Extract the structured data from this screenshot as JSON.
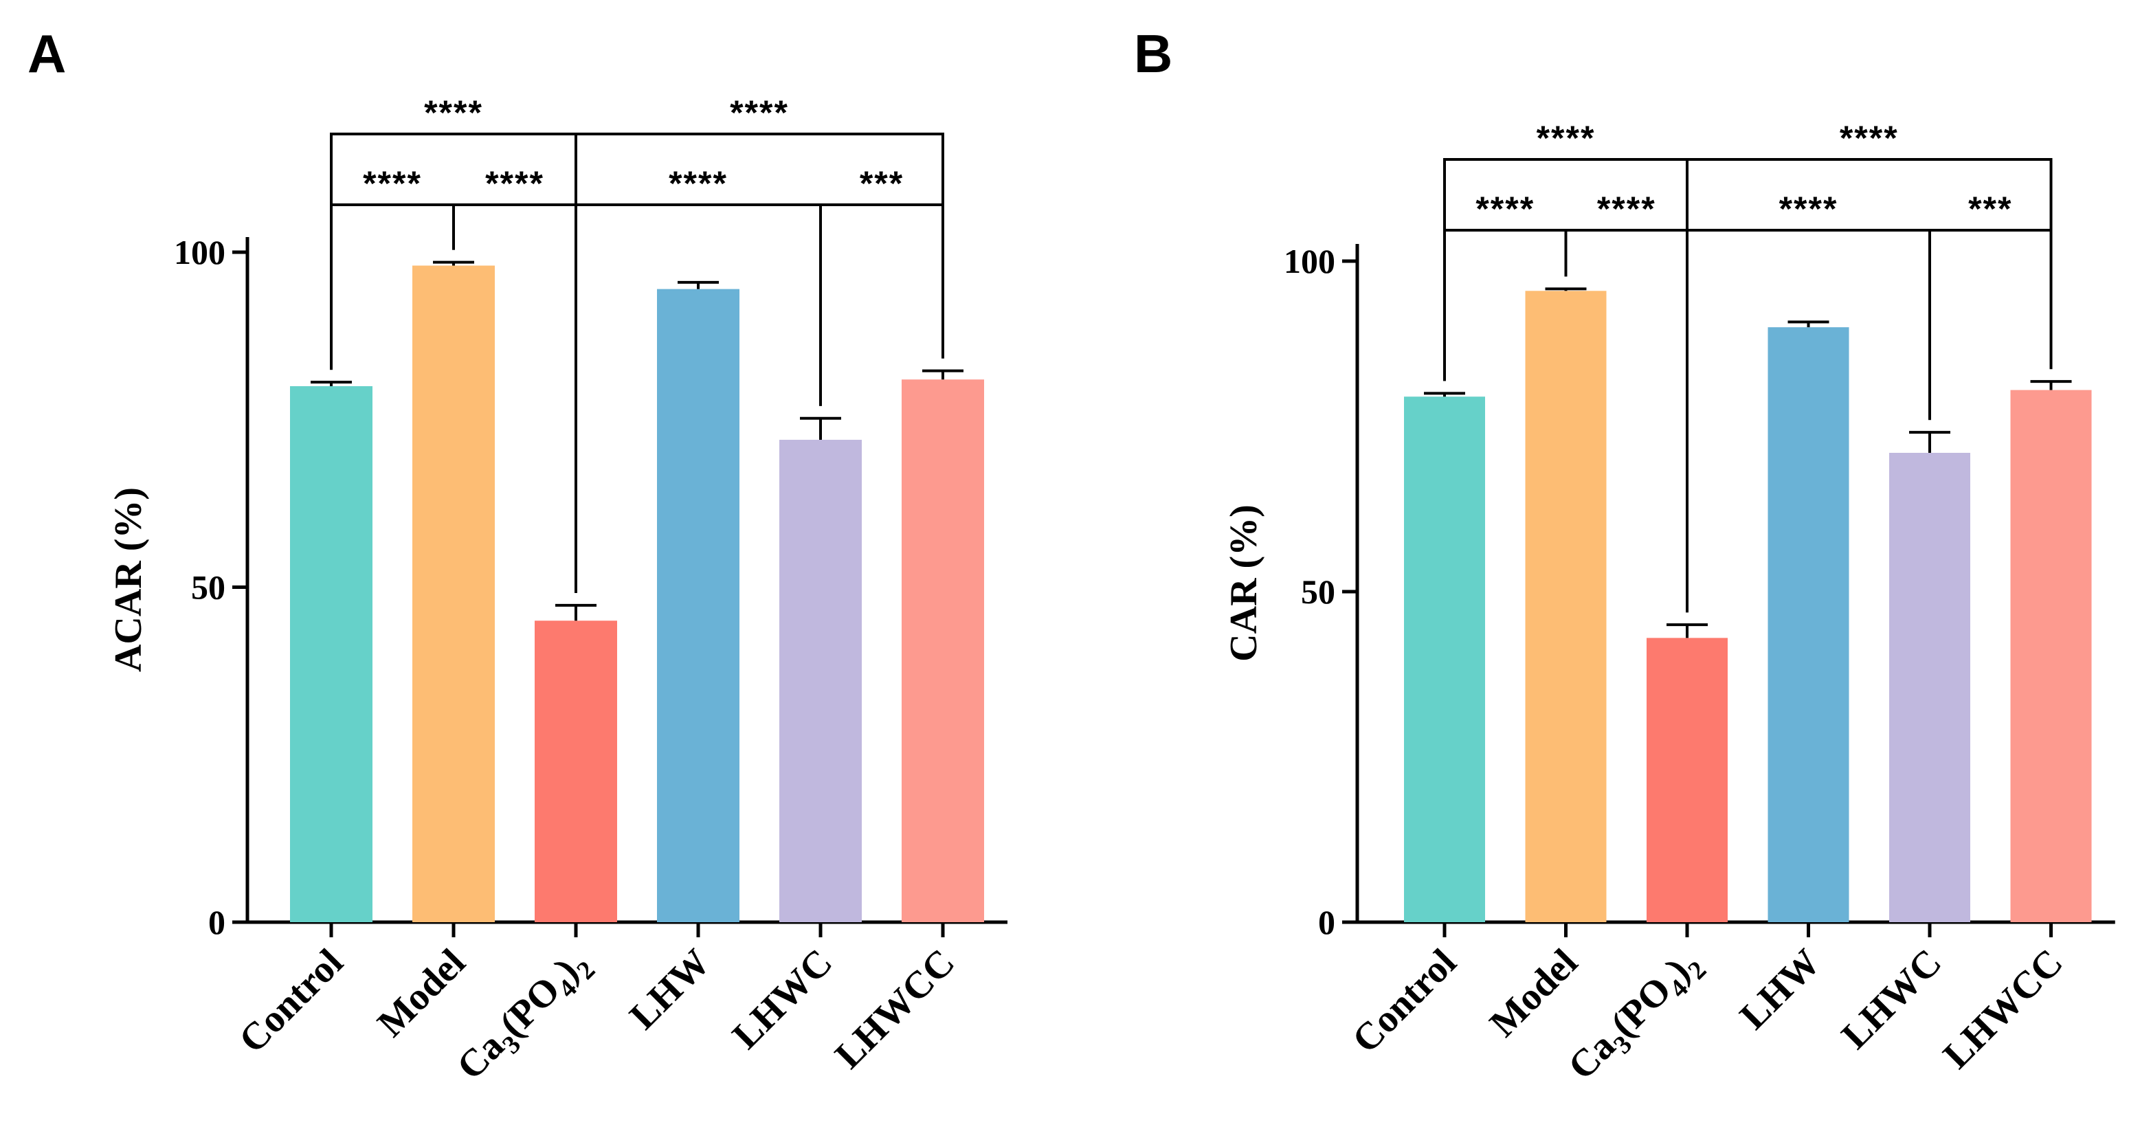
{
  "colors": {
    "Control": "#66d1c9",
    "Model": "#fdbd74",
    "Ca3(PO4)2": "#fd7a6e",
    "LHW": "#6ab2d6",
    "LHWC": "#c0b8de",
    "LHWCC": "#fd9a8f"
  },
  "chart_data": [
    {
      "panel": "A",
      "type": "bar",
      "ylabel": "ACAR (%)",
      "xlabel": "",
      "ylim": [
        0,
        100
      ],
      "yticks": [
        "0",
        "50",
        "100"
      ],
      "categories": [
        "Control",
        "Model",
        "Ca3(PO4)2",
        "LHW",
        "LHWC",
        "LHWCC"
      ],
      "category_labels": [
        {
          "main": "Control"
        },
        {
          "main": "Model"
        },
        {
          "pre": "Ca",
          "sub1": "3",
          "mid": "(PO",
          "sub2": "4",
          "post": ")",
          "sub3": "2"
        },
        {
          "main": "LHW"
        },
        {
          "main": "LHWC"
        },
        {
          "main": "LHWCC"
        }
      ],
      "values": [
        80,
        98,
        45,
        94.5,
        72,
        81
      ],
      "errors": [
        0.6,
        0.5,
        2.3,
        1.0,
        3.2,
        1.3
      ],
      "significance": [
        {
          "from": 0,
          "to": 1,
          "label": "****",
          "level": 1
        },
        {
          "from": 1,
          "to": 2,
          "label": "****",
          "level": 1
        },
        {
          "from": 0,
          "to": 2,
          "label": "****",
          "level": 2
        },
        {
          "from": 2,
          "to": 4,
          "label": "****",
          "level": 1
        },
        {
          "from": 4,
          "to": 5,
          "label": "***",
          "level": 1
        },
        {
          "from": 2,
          "to": 5,
          "label": "****",
          "level": 2
        }
      ]
    },
    {
      "panel": "B",
      "type": "bar",
      "ylabel": "CAR (%)",
      "xlabel": "",
      "ylim": [
        0,
        100
      ],
      "yticks": [
        "0",
        "50",
        "100"
      ],
      "categories": [
        "Control",
        "Model",
        "Ca3(PO4)2",
        "LHW",
        "LHWC",
        "LHWCC"
      ],
      "category_labels": [
        {
          "main": "Control"
        },
        {
          "main": "Model"
        },
        {
          "pre": "Ca",
          "sub1": "3",
          "mid": "(PO",
          "sub2": "4",
          "post": ")",
          "sub3": "2"
        },
        {
          "main": "LHW"
        },
        {
          "main": "LHWC"
        },
        {
          "main": "LHWCC"
        }
      ],
      "values": [
        79.5,
        95.5,
        43,
        90,
        71,
        80.5
      ],
      "errors": [
        0.5,
        0.3,
        2.0,
        0.8,
        3.1,
        1.3
      ],
      "significance": [
        {
          "from": 0,
          "to": 1,
          "label": "****",
          "level": 1
        },
        {
          "from": 1,
          "to": 2,
          "label": "****",
          "level": 1
        },
        {
          "from": 0,
          "to": 2,
          "label": "****",
          "level": 2
        },
        {
          "from": 2,
          "to": 4,
          "label": "****",
          "level": 1
        },
        {
          "from": 4,
          "to": 5,
          "label": "***",
          "level": 1
        },
        {
          "from": 2,
          "to": 5,
          "label": "****",
          "level": 2
        }
      ]
    }
  ]
}
